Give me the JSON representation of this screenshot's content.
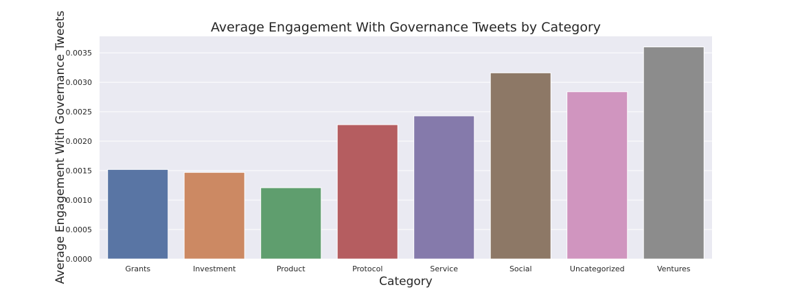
{
  "chart_data": {
    "type": "bar",
    "title": "Average Engagement With Governance Tweets by Category",
    "xlabel": "Category",
    "ylabel": "Average Engagement With Governance Tweets",
    "categories": [
      "Grants",
      "Investment",
      "Product",
      "Protocol",
      "Service",
      "Social",
      "Uncategorized",
      "Ventures"
    ],
    "values": [
      0.00152,
      0.00147,
      0.00121,
      0.00228,
      0.00243,
      0.00316,
      0.00284,
      0.0036
    ],
    "colors": [
      "#5975a4",
      "#cc8963",
      "#5f9e6e",
      "#b55d60",
      "#857aab",
      "#8d7866",
      "#d095bf",
      "#8c8c8c"
    ],
    "ylim": [
      0,
      0.00378
    ],
    "yticks": [
      "0.0000",
      "0.0005",
      "0.0010",
      "0.0015",
      "0.0020",
      "0.0025",
      "0.0030",
      "0.0035"
    ],
    "ytick_values": [
      0,
      0.0005,
      0.001,
      0.0015,
      0.002,
      0.0025,
      0.003,
      0.0035
    ],
    "grid": true,
    "legend": "none",
    "style": {
      "plot_background": "#eaeaf2",
      "grid_color": "#ffffff",
      "text_color": "#262626"
    }
  }
}
